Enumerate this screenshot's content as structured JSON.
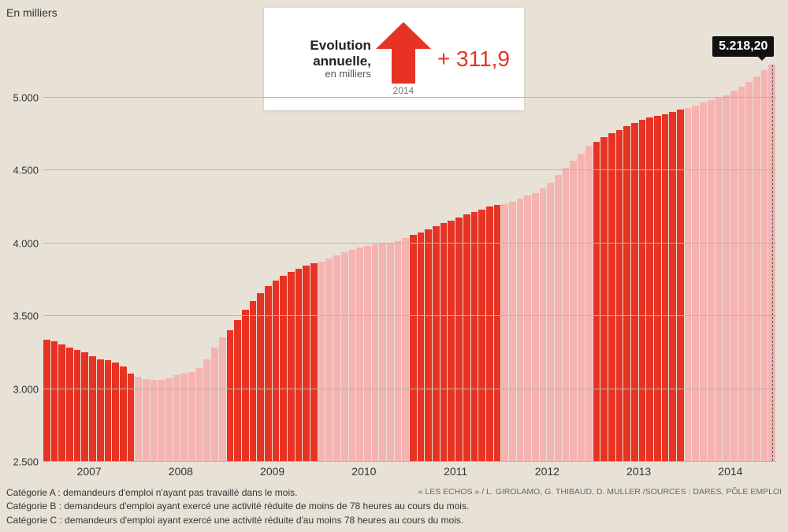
{
  "chart": {
    "type": "bar",
    "y_axis_title": "En milliers",
    "background_color": "#e8e2d6",
    "grid_color": "#bbb4a6",
    "bar_color_active": "#e73323",
    "bar_color_inactive": "#f5b3b1",
    "ylim": [
      2500,
      5500
    ],
    "yticks": [
      2500,
      3000,
      3500,
      4000,
      4500,
      5000
    ],
    "ytick_labels": [
      "2.500",
      "3.000",
      "3.500",
      "4.000",
      "4.500",
      "5.000"
    ],
    "x_year_labels": [
      "2007",
      "2008",
      "2009",
      "2010",
      "2011",
      "2012",
      "2013",
      "2014"
    ],
    "latest_value_label": "5.218,20",
    "badge_bg": "#111111",
    "badge_text_color": "#ffffff",
    "years": {
      "2007": [
        3335,
        3320,
        3300,
        3280,
        3260,
        3245,
        3220,
        3200,
        3190,
        3175,
        3150,
        3100
      ],
      "2008": [
        3080,
        3060,
        3055,
        3055,
        3070,
        3090,
        3100,
        3110,
        3140,
        3200,
        3280,
        3350
      ],
      "2009": [
        3400,
        3470,
        3540,
        3600,
        3650,
        3700,
        3740,
        3770,
        3800,
        3820,
        3840,
        3855
      ],
      "2010": [
        3870,
        3890,
        3910,
        3930,
        3950,
        3965,
        3975,
        3985,
        3995,
        4000,
        4010,
        4030
      ],
      "2011": [
        4050,
        4070,
        4090,
        4110,
        4130,
        4150,
        4170,
        4190,
        4210,
        4225,
        4245,
        4255
      ],
      "2012": [
        4260,
        4280,
        4300,
        4320,
        4340,
        4370,
        4410,
        4460,
        4510,
        4560,
        4610,
        4660
      ],
      "2013": [
        4690,
        4720,
        4750,
        4770,
        4800,
        4820,
        4840,
        4855,
        4870,
        4880,
        4895,
        4910
      ],
      "2014": [
        4920,
        4940,
        4960,
        4975,
        4990,
        5010,
        5040,
        5070,
        5100,
        5140,
        5180,
        5218.2
      ]
    },
    "highlighted_years": [
      "2007",
      "2009",
      "2011",
      "2013"
    ]
  },
  "callout": {
    "title": "Evolution annuelle,",
    "subtitle": "en milliers",
    "year": "2014",
    "value": "+ 311,9",
    "arrow_color": "#e73323",
    "value_color": "#e73323",
    "box_bg": "#ffffff"
  },
  "footer": {
    "lines": [
      "Catégorie A : demandeurs d'emploi n'ayant pas travaillé dans le mois.",
      "Catégorie B : demandeurs d'emploi ayant exercé une activité réduite de moins de 78 heures au cours du mois.",
      "Catégorie C : demandeurs d'emploi ayant exercé une activité réduite d'au moins 78 heures au cours du mois."
    ],
    "source": "« LES ECHOS » / L. GIROLAMO, G. THIBAUD, D. MULLER /SOURCES : DARES, PÔLE EMPLOI"
  }
}
